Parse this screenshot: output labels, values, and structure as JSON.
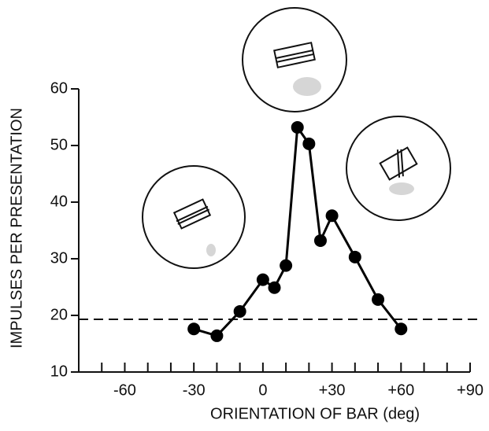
{
  "chart_data": {
    "type": "line",
    "xlabel": "ORIENTATION OF BAR (deg)",
    "ylabel": "IMPULSES PER PRESENTATION",
    "x": [
      -30,
      -20,
      -10,
      0,
      5,
      10,
      15,
      20,
      25,
      30,
      40,
      50,
      60
    ],
    "series": [
      {
        "color": "#000000",
        "values": [
          17.6,
          16.4,
          20.7,
          26.3,
          24.9,
          28.8,
          53.2,
          50.3,
          33.2,
          37.6,
          30.3,
          22.8,
          17.6
        ]
      }
    ],
    "xlim": [
      -80,
      90
    ],
    "ylim": [
      10,
      60
    ],
    "xticks": [
      {
        "value": -60,
        "label": "-60"
      },
      {
        "value": -30,
        "label": "-30"
      },
      0,
      {
        "value": 30,
        "label": "+30"
      },
      {
        "value": 60,
        "label": "+60"
      },
      {
        "value": 90,
        "label": "+90"
      }
    ],
    "xminorticks": [
      -80,
      -70,
      -50,
      -40,
      -20,
      -10,
      10,
      20,
      40,
      50,
      70,
      80
    ],
    "yticks": [
      10,
      20,
      30,
      40,
      50,
      60
    ],
    "baseline": 19.3
  }
}
